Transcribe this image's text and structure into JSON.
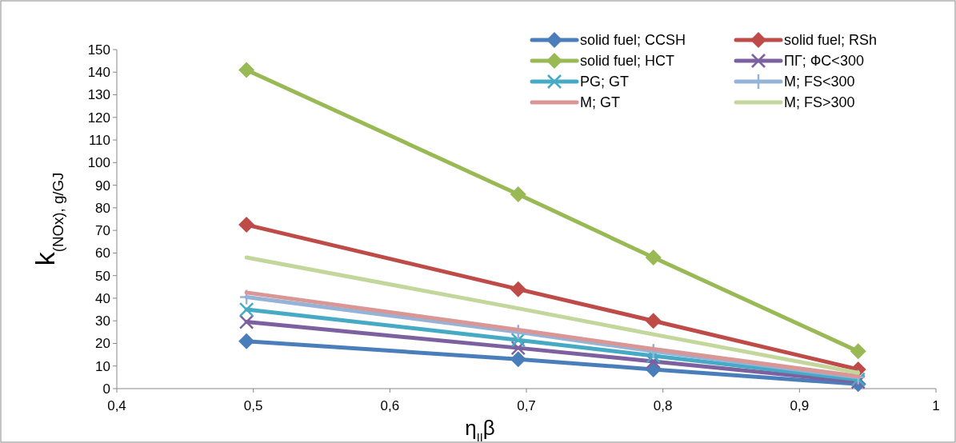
{
  "chart_data": {
    "type": "line",
    "xlabel": "η$_{II}$β",
    "ylabel": "k$_{(NOx), g/GJ}$",
    "x": [
      0.495,
      0.694,
      0.793,
      0.943
    ],
    "xlim": [
      0.4,
      1
    ],
    "xticks": [
      {
        "value": 0.4,
        "label": "0,4"
      },
      {
        "value": 0.5,
        "label": "0,5"
      },
      {
        "value": 0.6,
        "label": "0,6"
      },
      {
        "value": 0.7,
        "label": "0,7"
      },
      {
        "value": 0.8,
        "label": "0,8"
      },
      {
        "value": 0.9,
        "label": "0,9"
      },
      1
    ],
    "ylim": [
      0,
      150
    ],
    "yticks": [
      0,
      10,
      20,
      30,
      40,
      50,
      60,
      70,
      80,
      90,
      100,
      110,
      120,
      130,
      140,
      150
    ],
    "grid": false,
    "legend": "top right",
    "series": [
      {
        "name": "solid fuel; CCSH",
        "color": "#4a7ebb",
        "marker": "diamond",
        "values": [
          21,
          13,
          8.5,
          2
        ]
      },
      {
        "name": "solid fuel; RSh",
        "color": "#be4b48",
        "marker": "diamond",
        "values": [
          72.5,
          44,
          30,
          8.5
        ]
      },
      {
        "name": "solid fuel; HCT",
        "color": "#98b954",
        "marker": "diamond",
        "values": [
          141,
          86,
          58,
          16.5
        ]
      },
      {
        "name": "ПГ; ФС<300",
        "color": "#7d60a0",
        "marker": "cross",
        "values": [
          29.5,
          18,
          12,
          3
        ]
      },
      {
        "name": "PG; GT",
        "color": "#46aac5",
        "marker": "cross",
        "values": [
          35,
          21.5,
          14.5,
          4
        ]
      },
      {
        "name": "M; FS<300",
        "color": "#95b3d7",
        "marker": "plus",
        "values": [
          40.5,
          25,
          16.5,
          5
        ]
      },
      {
        "name": "M; GT",
        "color": "#d99694",
        "marker": "none",
        "values": [
          42.5,
          26,
          17.5,
          5.5
        ]
      },
      {
        "name": "M; FS>300",
        "color": "#c3d69b",
        "marker": "none",
        "values": [
          58,
          35.5,
          24,
          7
        ]
      }
    ]
  }
}
